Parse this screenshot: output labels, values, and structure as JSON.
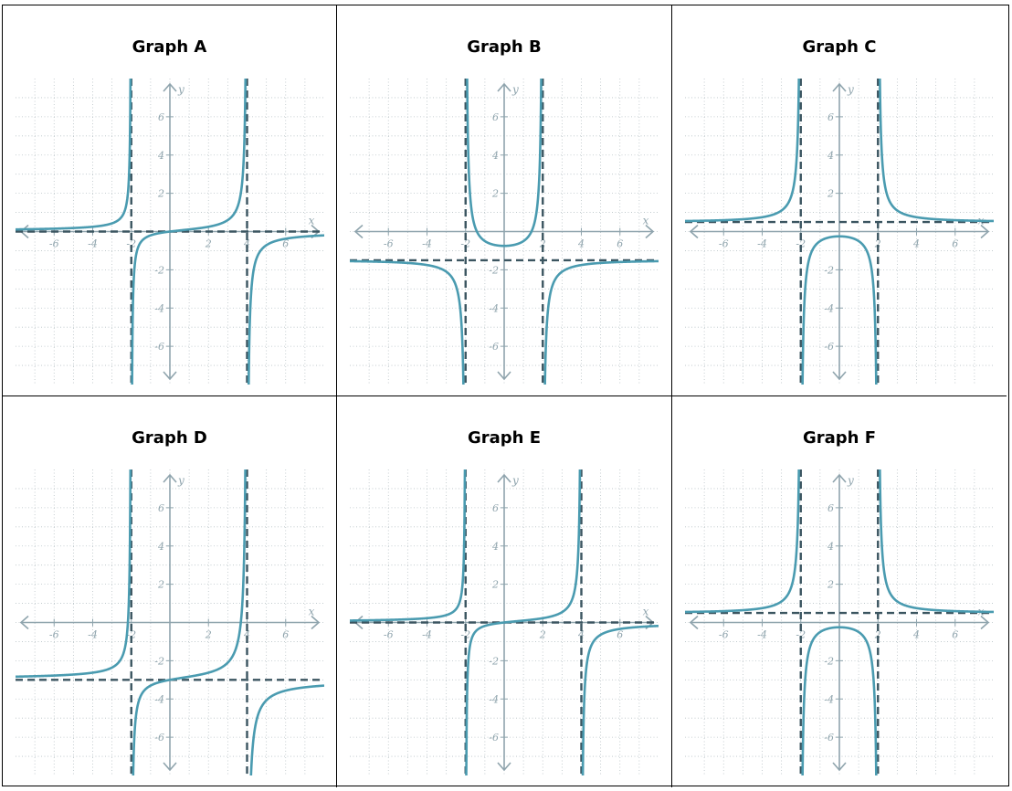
{
  "graphs": [
    {
      "title": "Graph A",
      "curve": "A",
      "vasym": [
        -2,
        4
      ],
      "hasym": 0
    },
    {
      "title": "Graph B",
      "curve": "B",
      "vasym": [
        -2,
        2
      ],
      "hasym": -1.5
    },
    {
      "title": "Graph C",
      "curve": "C",
      "vasym": [
        -2,
        2
      ],
      "hasym": 0.5
    },
    {
      "title": "Graph D",
      "curve": "D",
      "vasym": [
        -2,
        4
      ],
      "hasym": -3
    },
    {
      "title": "Graph E",
      "curve": "E",
      "vasym": [
        -2,
        4
      ],
      "hasym": 0
    },
    {
      "title": "Graph F",
      "curve": "F",
      "vasym": [
        -2,
        2
      ],
      "hasym": 0.5
    }
  ],
  "axes": {
    "xlim": [
      -8,
      8
    ],
    "ylim": [
      -8,
      8
    ],
    "x_ticks": [
      "-6",
      "-4",
      "-2",
      "2",
      "4",
      "6"
    ],
    "y_ticks": [
      "6",
      "4",
      "2",
      "-2",
      "-4",
      "-6"
    ],
    "x_name": "x",
    "y_name": "y"
  },
  "colors": {
    "curve": "#4a9bb0",
    "asymptote": "#3b5560",
    "axis": "#8fa4ad",
    "grid": "#b8c2c6"
  }
}
